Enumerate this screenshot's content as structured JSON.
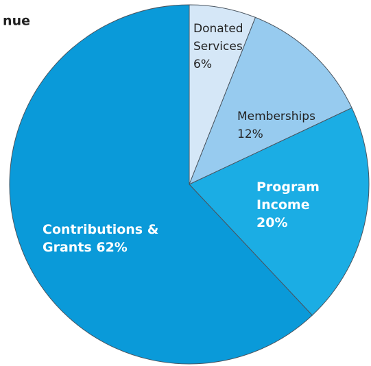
{
  "chart_data": {
    "type": "pie",
    "title": "nue",
    "categories": [
      "Donated Services",
      "Memberships",
      "Program Income",
      "Contributions & Grants"
    ],
    "values": [
      6,
      12,
      20,
      62
    ],
    "value_labels": [
      "6%",
      "12%",
      "20%",
      "62%"
    ],
    "colors": [
      "#d5e7f7",
      "#97cbef",
      "#1badE4",
      "#0a9ad9"
    ]
  }
}
